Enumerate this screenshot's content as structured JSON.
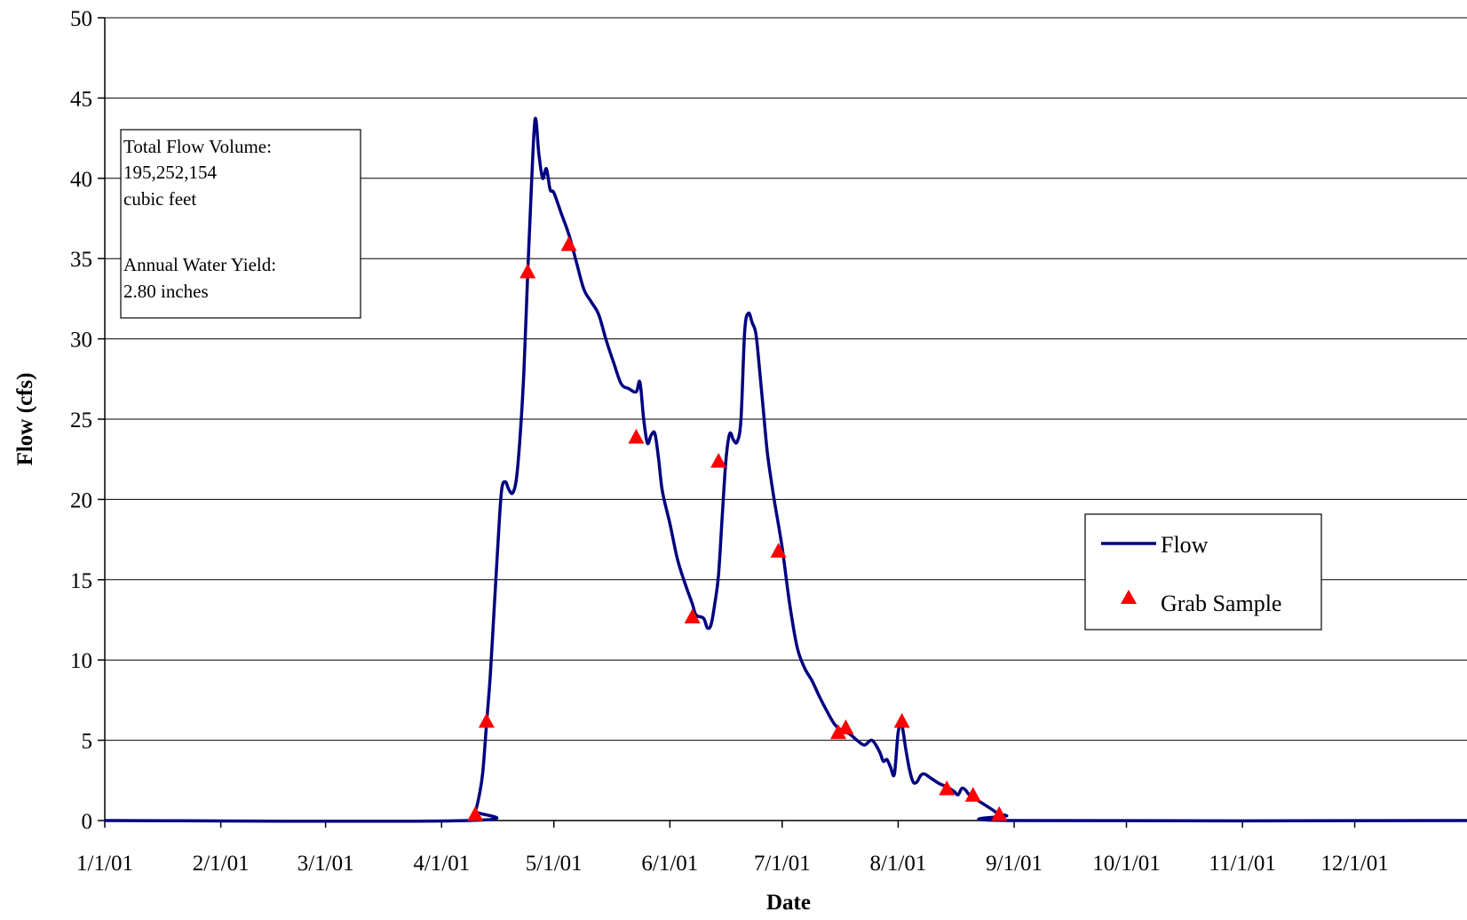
{
  "chart_data": {
    "type": "line",
    "title": "",
    "xlabel": "Date",
    "ylabel": "Flow (cfs)",
    "x_start": "2001-01-01",
    "x_end": "2001-12-31",
    "x_tick_labels": [
      "1/1/01",
      "2/1/01",
      "3/1/01",
      "4/1/01",
      "5/1/01",
      "6/1/01",
      "7/1/01",
      "8/1/01",
      "9/1/01",
      "10/1/01",
      "11/1/01",
      "12/1/01"
    ],
    "x_tick_dates": [
      "2001-01-01",
      "2001-02-01",
      "2001-03-01",
      "2001-04-01",
      "2001-05-01",
      "2001-06-01",
      "2001-07-01",
      "2001-08-01",
      "2001-09-01",
      "2001-10-01",
      "2001-11-01",
      "2001-12-01"
    ],
    "ylim": [
      0,
      50
    ],
    "y_ticks": [
      0,
      5,
      10,
      15,
      20,
      25,
      30,
      35,
      40,
      45,
      50
    ],
    "grid": "horizontal",
    "legend_position": "right",
    "series": [
      {
        "name": "Flow",
        "style": "line",
        "color": "#000080",
        "points": [
          [
            "2001-01-01",
            0
          ],
          [
            "2001-04-08",
            0
          ],
          [
            "2001-04-10",
            0.6
          ],
          [
            "2001-04-11",
            1.5
          ],
          [
            "2001-04-12",
            3
          ],
          [
            "2001-04-13",
            6
          ],
          [
            "2001-04-14",
            9
          ],
          [
            "2001-04-15",
            13
          ],
          [
            "2001-04-16",
            17
          ],
          [
            "2001-04-17",
            20.5
          ],
          [
            "2001-04-18",
            21.1
          ],
          [
            "2001-04-19",
            20.6
          ],
          [
            "2001-04-20",
            20.4
          ],
          [
            "2001-04-21",
            21.3
          ],
          [
            "2001-04-22",
            24
          ],
          [
            "2001-04-23",
            28
          ],
          [
            "2001-04-24",
            34
          ],
          [
            "2001-04-25",
            39.5
          ],
          [
            "2001-04-26",
            43.7
          ],
          [
            "2001-04-27",
            41.5
          ],
          [
            "2001-04-28",
            40
          ],
          [
            "2001-04-29",
            40.6
          ],
          [
            "2001-04-30",
            39.3
          ],
          [
            "2001-05-01",
            39.1
          ],
          [
            "2001-05-03",
            37.8
          ],
          [
            "2001-05-05",
            36.5
          ],
          [
            "2001-05-07",
            34.8
          ],
          [
            "2001-05-09",
            33.1
          ],
          [
            "2001-05-11",
            32.3
          ],
          [
            "2001-05-13",
            31.5
          ],
          [
            "2001-05-15",
            29.9
          ],
          [
            "2001-05-17",
            28.5
          ],
          [
            "2001-05-19",
            27.2
          ],
          [
            "2001-05-21",
            26.9
          ],
          [
            "2001-05-23",
            26.7
          ],
          [
            "2001-05-24",
            27.3
          ],
          [
            "2001-05-25",
            25
          ],
          [
            "2001-05-26",
            23.5
          ],
          [
            "2001-05-27",
            24
          ],
          [
            "2001-05-28",
            24.1
          ],
          [
            "2001-05-29",
            22.5
          ],
          [
            "2001-05-30",
            20.5
          ],
          [
            "2001-06-01",
            18.5
          ],
          [
            "2001-06-03",
            16.3
          ],
          [
            "2001-06-05",
            14.8
          ],
          [
            "2001-06-07",
            13.5
          ],
          [
            "2001-06-08",
            12.8
          ],
          [
            "2001-06-10",
            12.6
          ],
          [
            "2001-06-11",
            12
          ],
          [
            "2001-06-12",
            12.2
          ],
          [
            "2001-06-13",
            13.5
          ],
          [
            "2001-06-14",
            15.3
          ],
          [
            "2001-06-15",
            19
          ],
          [
            "2001-06-16",
            22.5
          ],
          [
            "2001-06-17",
            24.1
          ],
          [
            "2001-06-18",
            23.7
          ],
          [
            "2001-06-19",
            23.6
          ],
          [
            "2001-06-20",
            25
          ],
          [
            "2001-06-21",
            30.5
          ],
          [
            "2001-06-22",
            31.6
          ],
          [
            "2001-06-23",
            31
          ],
          [
            "2001-06-24",
            30.3
          ],
          [
            "2001-06-25",
            28
          ],
          [
            "2001-06-26",
            25.5
          ],
          [
            "2001-06-27",
            23
          ],
          [
            "2001-06-28",
            21.3
          ],
          [
            "2001-06-29",
            19.8
          ],
          [
            "2001-07-01",
            17
          ],
          [
            "2001-07-03",
            13.5
          ],
          [
            "2001-07-05",
            10.8
          ],
          [
            "2001-07-07",
            9.5
          ],
          [
            "2001-07-09",
            8.7
          ],
          [
            "2001-07-11",
            7.7
          ],
          [
            "2001-07-13",
            6.8
          ],
          [
            "2001-07-15",
            6
          ],
          [
            "2001-07-17",
            5.6
          ],
          [
            "2001-07-19",
            5.4
          ],
          [
            "2001-07-21",
            5
          ],
          [
            "2001-07-23",
            4.7
          ],
          [
            "2001-07-25",
            5
          ],
          [
            "2001-07-27",
            4.3
          ],
          [
            "2001-07-28",
            3.7
          ],
          [
            "2001-07-29",
            3.8
          ],
          [
            "2001-07-30",
            3.3
          ],
          [
            "2001-07-31",
            2.9
          ],
          [
            "2001-08-01",
            5.5
          ],
          [
            "2001-08-02",
            5.9
          ],
          [
            "2001-08-03",
            4.5
          ],
          [
            "2001-08-04",
            3.2
          ],
          [
            "2001-08-05",
            2.4
          ],
          [
            "2001-08-06",
            2.4
          ],
          [
            "2001-08-07",
            2.8
          ],
          [
            "2001-08-08",
            2.9
          ],
          [
            "2001-08-10",
            2.6
          ],
          [
            "2001-08-12",
            2.3
          ],
          [
            "2001-08-14",
            2.1
          ],
          [
            "2001-08-16",
            1.8
          ],
          [
            "2001-08-17",
            1.6
          ],
          [
            "2001-08-18",
            2
          ],
          [
            "2001-08-19",
            1.9
          ],
          [
            "2001-08-20",
            1.6
          ],
          [
            "2001-08-22",
            1.3
          ],
          [
            "2001-08-24",
            1
          ],
          [
            "2001-08-26",
            0.7
          ],
          [
            "2001-08-28",
            0.4
          ],
          [
            "2001-08-30",
            0.3
          ],
          [
            "2001-09-01",
            0
          ],
          [
            "2001-12-31",
            0
          ]
        ]
      },
      {
        "name": "Grab Sample",
        "style": "marker",
        "marker": "triangle",
        "color": "#ff0000",
        "points": [
          [
            "2001-04-10",
            0.4
          ],
          [
            "2001-04-13",
            6.2
          ],
          [
            "2001-04-24",
            34.2
          ],
          [
            "2001-05-05",
            35.9
          ],
          [
            "2001-05-23",
            23.9
          ],
          [
            "2001-06-07",
            12.7
          ],
          [
            "2001-06-14",
            22.4
          ],
          [
            "2001-06-30",
            16.8
          ],
          [
            "2001-07-16",
            5.5
          ],
          [
            "2001-07-18",
            5.8
          ],
          [
            "2001-08-02",
            6.2
          ],
          [
            "2001-08-14",
            2.0
          ],
          [
            "2001-08-21",
            1.6
          ],
          [
            "2001-08-28",
            0.4
          ]
        ]
      }
    ],
    "annotation": {
      "lines": [
        "Total Flow Volume:",
        "195,252,154",
        "cubic feet",
        "",
        "Annual Water Yield:",
        "2.80 inches"
      ]
    }
  }
}
